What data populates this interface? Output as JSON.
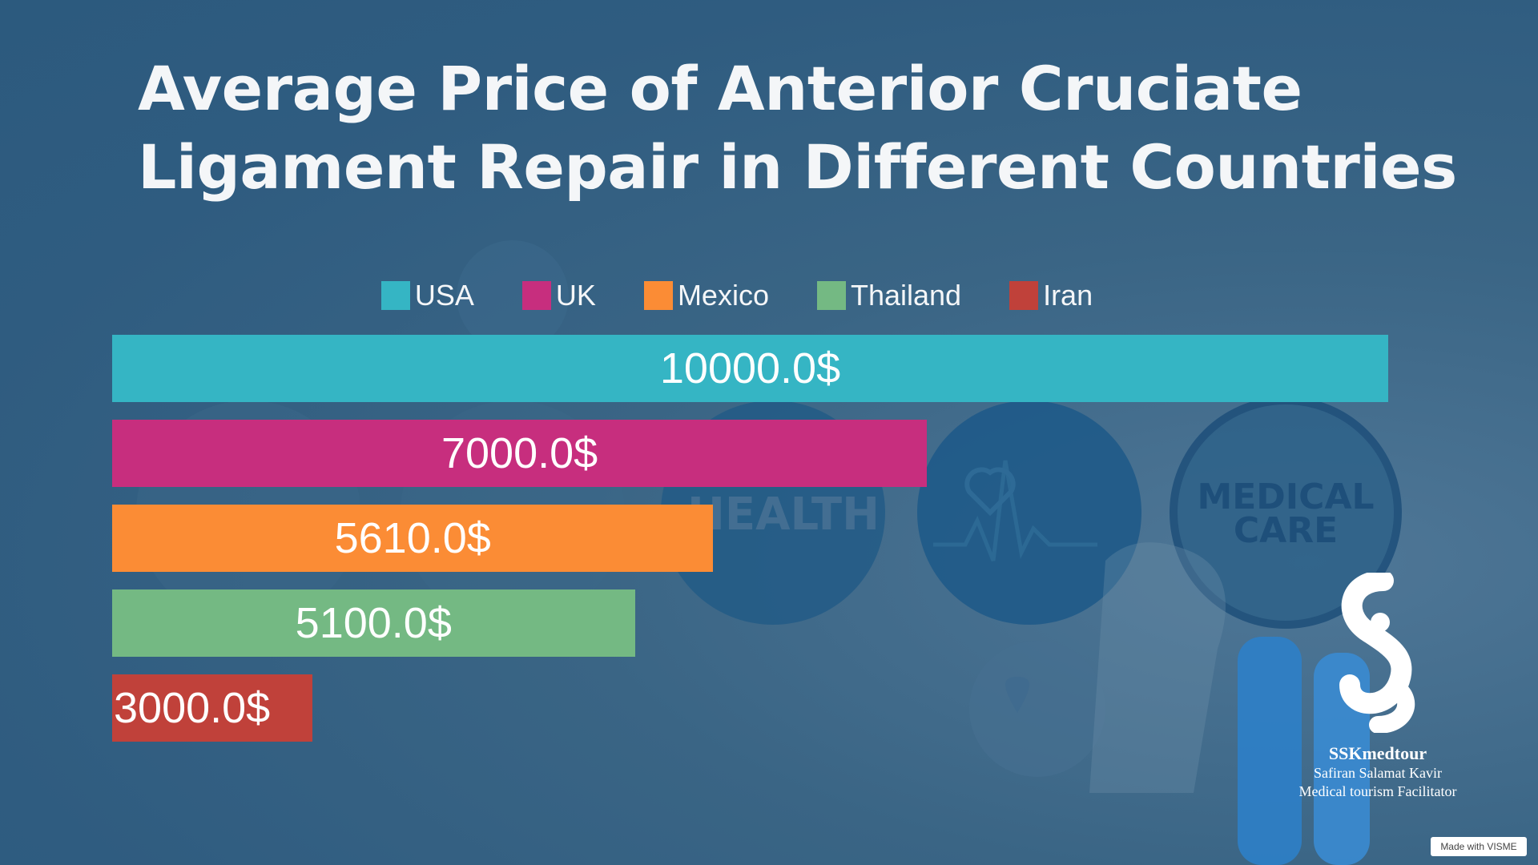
{
  "chart_data": {
    "type": "bar",
    "orientation": "horizontal",
    "title": "Average Price of Anterior Cruciate Ligament Repair in Different Countries",
    "categories": [
      "USA",
      "UK",
      "Mexico",
      "Thailand",
      "Iran"
    ],
    "values": [
      10000.0,
      7000.0,
      5610.0,
      5100.0,
      3000.0
    ],
    "value_labels": [
      "10000.0$",
      "7000.0$",
      "5610.0$",
      "5100.0$",
      "3000.0$"
    ],
    "colors": [
      "#35b5c4",
      "#c72e7e",
      "#fb8c35",
      "#74b983",
      "#c0413a"
    ],
    "xlim": [
      1700,
      10000
    ],
    "grid": false,
    "legend": "top-center"
  },
  "background": {
    "health_text": "HEALTH",
    "medical_text_1": "MEDICAL",
    "medical_text_2": "CARE"
  },
  "brand": {
    "name": "SSKmedtour",
    "line1": "Safiran Salamat Kavir",
    "line2": "Medical tourism Facilitator"
  },
  "badge": "Made with VISME"
}
